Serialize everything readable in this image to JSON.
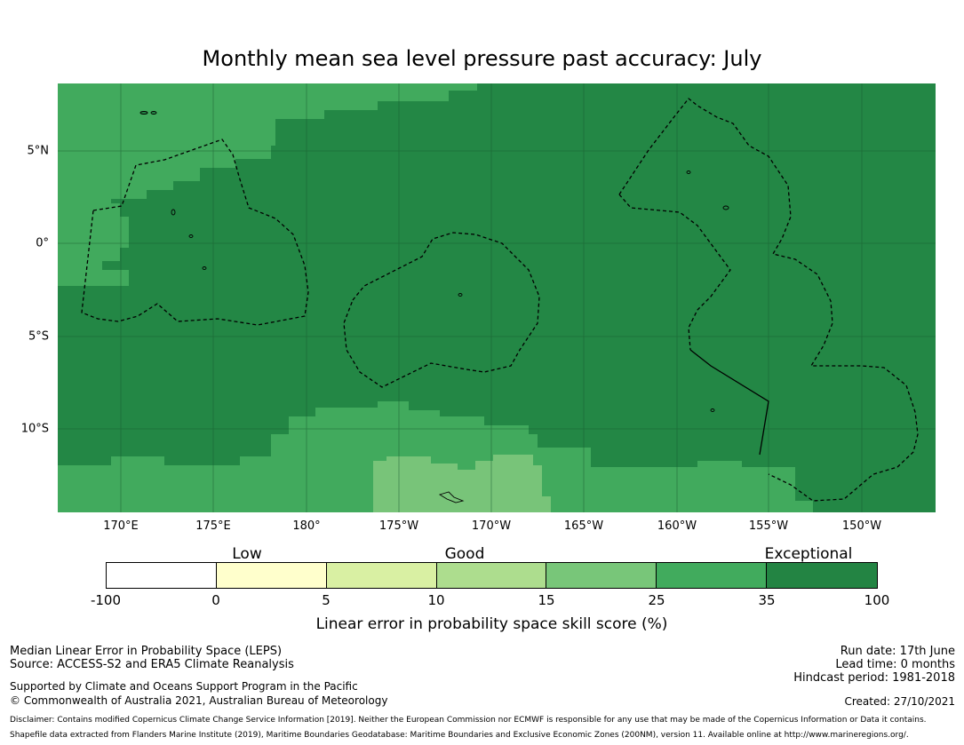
{
  "title": "Monthly mean sea level pressure past accuracy: July",
  "map": {
    "lon_ticks": [
      "170°E",
      "175°E",
      "180°",
      "175°W",
      "170°W",
      "165°W",
      "160°W",
      "155°W",
      "150°W"
    ],
    "lat_ticks": [
      "5°N",
      "0°",
      "5°S",
      "10°S"
    ],
    "colors": {
      "exceptional": "#238745",
      "good_high": "#41aa5d",
      "good_mid": "#78c479",
      "outline": "#000000"
    }
  },
  "colorbar": {
    "categories": [
      "Low",
      "Good",
      "Exceptional"
    ],
    "ticks": [
      "-100",
      "0",
      "5",
      "10",
      "15",
      "25",
      "35",
      "100"
    ],
    "colors": [
      "#ffffff",
      "#ffffcc",
      "#d9f0a3",
      "#addd8e",
      "#78c679",
      "#41ab5d",
      "#238443"
    ],
    "label": "Linear error in probability space skill score (%)"
  },
  "footer": {
    "line1": "Median Linear Error in Probability Space (LEPS)",
    "line2": "Source: ACCESS-S2 and ERA5 Climate Reanalysis",
    "line3": "Supported by Climate and Oceans Support Program in the Pacific",
    "line4": "© Commonwealth of Australia 2021, Australian Bureau of Meteorology",
    "run_date": "Run date: 17th June",
    "lead_time": "Lead time: 0 months",
    "hindcast": "Hindcast period: 1981-2018",
    "created": "Created: 27/10/2021",
    "disclaimer": "Disclaimer: Contains modified Copernicus Climate Change Service Information [2019]. Neither the European Commission nor ECMWF is responsible for any use that may be made of the Copernicus Information or Data it contains.",
    "shapefile": "Shapefile data extracted from Flanders Marine Institute (2019), Maritime Boundaries Geodatabase: Maritime Boundaries and Exclusive Economic Zones (200NM), version 11. Available online at http://www.marineregions.org/."
  }
}
